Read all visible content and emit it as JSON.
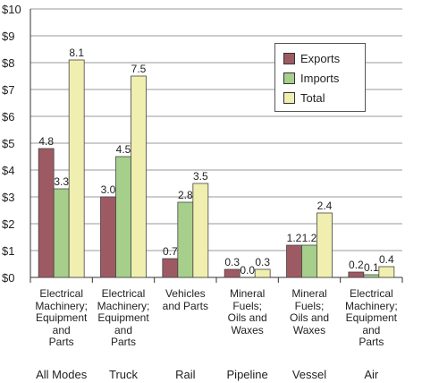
{
  "chart_data": {
    "type": "bar",
    "ylim": [
      0,
      10
    ],
    "yticks": [
      "$0",
      "$1",
      "$2",
      "$3",
      "$4",
      "$5",
      "$6",
      "$7",
      "$8",
      "$9",
      "$10"
    ],
    "grid": true,
    "legend_position": "top-right",
    "categories": [
      "Electrical Machinery; Equipment and Parts",
      "Electrical Machinery; Equipment and Parts",
      "Vehicles and Parts",
      "Mineral Fuels; Oils and Waxes",
      "Mineral Fuels; Oils and Waxes",
      "Electrical Machinery; Equipment and Parts"
    ],
    "category_lines": [
      [
        "Electrical",
        "Machinery;",
        "Equipment",
        "and",
        "Parts"
      ],
      [
        "Electrical",
        "Machinery;",
        "Equipment",
        "and",
        "Parts"
      ],
      [
        "Vehicles",
        "and Parts"
      ],
      [
        "Mineral",
        "Fuels;",
        "Oils and",
        "Waxes"
      ],
      [
        "Mineral",
        "Fuels;",
        "Oils and",
        "Waxes"
      ],
      [
        "Electrical",
        "Machinery;",
        "Equipment",
        "and",
        "Parts"
      ]
    ],
    "modes": [
      "All Modes",
      "Truck",
      "Rail",
      "Pipeline",
      "Vessel",
      "Air"
    ],
    "series": [
      {
        "name": "Exports",
        "color": "#9e5a63",
        "values": [
          4.8,
          3.0,
          0.7,
          0.3,
          1.2,
          0.2
        ],
        "labels": [
          "4.8",
          "3.0",
          "0.7",
          "0.3",
          "1.2",
          "0.2"
        ]
      },
      {
        "name": "Imports",
        "color": "#a6cf8b",
        "values": [
          3.3,
          4.5,
          2.8,
          0.0,
          1.2,
          0.1
        ],
        "labels": [
          "3.3",
          "4.5",
          "2.8",
          "0.0",
          "1.2",
          "0.1"
        ]
      },
      {
        "name": "Total",
        "color": "#f0efaf",
        "values": [
          8.1,
          7.5,
          3.5,
          0.3,
          2.4,
          0.4
        ],
        "labels": [
          "8.1",
          "7.5",
          "3.5",
          "0.3",
          "2.4",
          "0.4"
        ]
      }
    ]
  }
}
